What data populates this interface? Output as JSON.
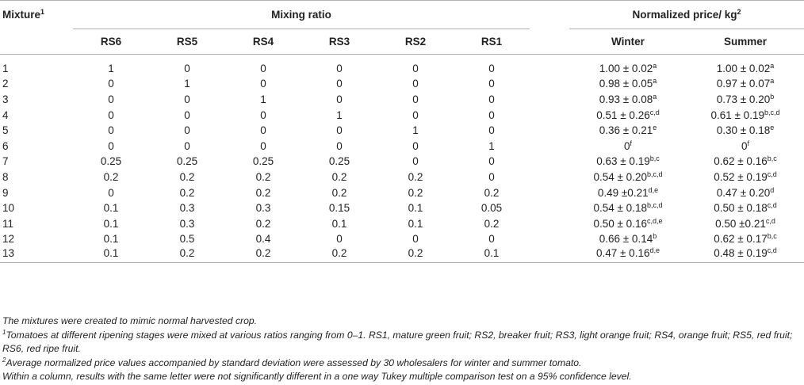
{
  "table": {
    "col_mixture": "Mixture",
    "col_mixture_sup": "1",
    "col_mixing_ratio": "Mixing ratio",
    "col_price": "Normalized price/ kg",
    "col_price_sup": "2",
    "ratio_cols": [
      "RS6",
      "RS5",
      "RS4",
      "RS3",
      "RS2",
      "RS1"
    ],
    "price_cols": [
      "Winter",
      "Summer"
    ],
    "rows": [
      {
        "id": "1",
        "ratios": [
          "1",
          "0",
          "0",
          "0",
          "0",
          "0"
        ],
        "winter": "1.00 ± 0.02",
        "winter_sup": "a",
        "summer": "1.00 ± 0.02",
        "summer_sup": "a"
      },
      {
        "id": "2",
        "ratios": [
          "0",
          "1",
          "0",
          "0",
          "0",
          "0"
        ],
        "winter": "0.98 ± 0.05",
        "winter_sup": "a",
        "summer": "0.97 ± 0.07",
        "summer_sup": "a"
      },
      {
        "id": "3",
        "ratios": [
          "0",
          "0",
          "1",
          "0",
          "0",
          "0"
        ],
        "winter": "0.93 ± 0.08",
        "winter_sup": "a",
        "summer": "0.73 ± 0.20",
        "summer_sup": "b"
      },
      {
        "id": "4",
        "ratios": [
          "0",
          "0",
          "0",
          "1",
          "0",
          "0"
        ],
        "winter": "0.51 ± 0.26",
        "winter_sup": "c,d",
        "summer": "0.61 ± 0.19",
        "summer_sup": "b,c,d"
      },
      {
        "id": "5",
        "ratios": [
          "0",
          "0",
          "0",
          "0",
          "1",
          "0"
        ],
        "winter": "0.36 ± 0.21",
        "winter_sup": "e",
        "summer": "0.30 ± 0.18",
        "summer_sup": "e"
      },
      {
        "id": "6",
        "ratios": [
          "0",
          "0",
          "0",
          "0",
          "0",
          "1"
        ],
        "winter": "0",
        "winter_sup": "f",
        "summer": "0",
        "summer_sup": "f"
      },
      {
        "id": "7",
        "ratios": [
          "0.25",
          "0.25",
          "0.25",
          "0.25",
          "0",
          "0"
        ],
        "winter": "0.63 ± 0.19",
        "winter_sup": "b,c",
        "summer": "0.62 ± 0.16",
        "summer_sup": "b,c"
      },
      {
        "id": "8",
        "ratios": [
          "0.2",
          "0.2",
          "0.2",
          "0.2",
          "0.2",
          "0"
        ],
        "winter": "0.54 ± 0.20",
        "winter_sup": "b,c,d",
        "summer": "0.52 ± 0.19",
        "summer_sup": "c,d"
      },
      {
        "id": "9",
        "ratios": [
          "0",
          "0.2",
          "0.2",
          "0.2",
          "0.2",
          "0.2"
        ],
        "winter": "0.49 ±0.21",
        "winter_sup": "d,e",
        "summer": "0.47 ± 0.20",
        "summer_sup": "d"
      },
      {
        "id": "10",
        "ratios": [
          "0.1",
          "0.3",
          "0.3",
          "0.15",
          "0.1",
          "0.05"
        ],
        "winter": "0.54 ± 0.18",
        "winter_sup": "b,c,d",
        "summer": "0.50 ± 0.18",
        "summer_sup": "c,d"
      },
      {
        "id": "11",
        "ratios": [
          "0.1",
          "0.3",
          "0.2",
          "0.1",
          "0.1",
          "0.2"
        ],
        "winter": "0.50 ± 0.16",
        "winter_sup": "c,d,e",
        "summer": "0.50 ±0.21",
        "summer_sup": "c,d"
      },
      {
        "id": "12",
        "ratios": [
          "0.1",
          "0.5",
          "0.4",
          "0",
          "0",
          "0"
        ],
        "winter": "0.66 ± 0.14",
        "winter_sup": "b",
        "summer": "0.62 ± 0.17",
        "summer_sup": "b,c"
      },
      {
        "id": "13",
        "ratios": [
          "0.1",
          "0.2",
          "0.2",
          "0.2",
          "0.2",
          "0.1"
        ],
        "winter": "0.47 ± 0.16",
        "winter_sup": "d,e",
        "summer": "0.48 ± 0.19",
        "summer_sup": "c,d"
      }
    ]
  },
  "notes": {
    "general": "The mixtures were created to mimic normal harvested crop.",
    "fn1_marker": "1",
    "fn1": "Tomatoes at different ripening stages were mixed at various ratios ranging from 0–1. RS1, mature green fruit; RS2, breaker fruit; RS3, light orange fruit; RS4, orange fruit; RS5, red fruit; RS6, red ripe fruit.",
    "fn2_marker": "2",
    "fn2": "Average normalized price values accompanied by standard deviation were assessed by 30 wholesalers for winter and summer tomato.",
    "stat": "Within a column, results with the same letter were not significantly different in a one way Tukey multiple comparison test on a 95% confidence level."
  }
}
